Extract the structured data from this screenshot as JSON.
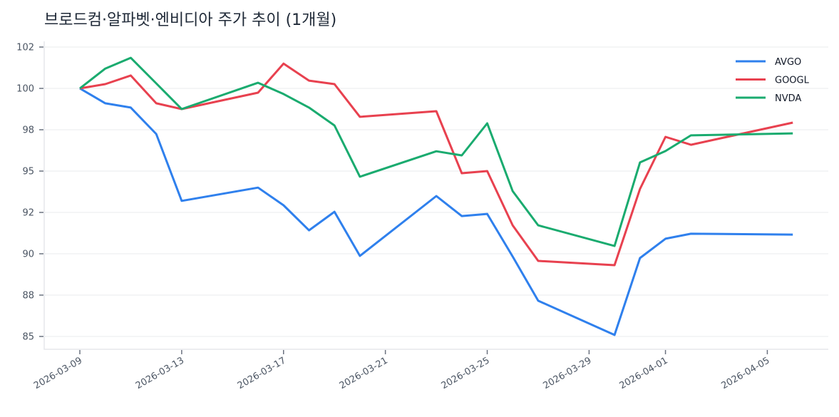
{
  "chart_data": {
    "type": "line",
    "title": "브로드컴·알파벳·엔비디아 주가 추이 (1개월)",
    "xlabel": "",
    "ylabel": "",
    "x": [
      "2026-03-09",
      "2026-03-10",
      "2026-03-11",
      "2026-03-12",
      "2026-03-13",
      "2026-03-16",
      "2026-03-17",
      "2026-03-18",
      "2026-03-19",
      "2026-03-20",
      "2026-03-23",
      "2026-03-24",
      "2026-03-25",
      "2026-03-26",
      "2026-03-27",
      "2026-03-30",
      "2026-03-31",
      "2026-04-01",
      "2026-04-02",
      "2026-04-06"
    ],
    "series": [
      {
        "name": "AVGO",
        "color": "#2f80ed",
        "values": [
          100,
          99.1,
          98.84,
          97.24,
          93.2,
          94.0,
          92.93,
          91.42,
          92.54,
          89.87,
          93.49,
          92.28,
          92.41,
          89.83,
          87.16,
          85.09,
          89.74,
          90.91,
          91.21,
          91.16
        ]
      },
      {
        "name": "GOOGL",
        "color": "#e8414f",
        "values": [
          100,
          100.26,
          100.78,
          99.1,
          98.75,
          99.74,
          101.5,
          100.47,
          100.26,
          98.28,
          98.62,
          94.87,
          95.0,
          91.72,
          89.57,
          89.31,
          93.92,
          97.07,
          96.59,
          97.93
        ]
      },
      {
        "name": "NVDA",
        "color": "#1aab6f",
        "values": [
          100,
          101.2,
          101.85,
          100.3,
          98.75,
          100.34,
          99.66,
          98.84,
          97.76,
          94.66,
          96.2,
          95.95,
          97.89,
          93.79,
          91.72,
          90.47,
          95.52,
          96.21,
          97.16,
          97.28
        ]
      }
    ],
    "yticks": [
      102.5,
      100,
      97.5,
      95,
      92.5,
      90,
      87.5,
      85
    ],
    "ytick_labels": [
      "102",
      "100",
      "98",
      "95",
      "92",
      "90",
      "88",
      "85"
    ],
    "xticks": [
      "2026-03-09",
      "2026-03-13",
      "2026-03-17",
      "2026-03-21",
      "2026-03-25",
      "2026-03-29",
      "2026-04-01",
      "2026-04-05"
    ],
    "ylim": [
      84.2,
      103.1
    ],
    "grid": true,
    "legend_position": "upper right"
  }
}
